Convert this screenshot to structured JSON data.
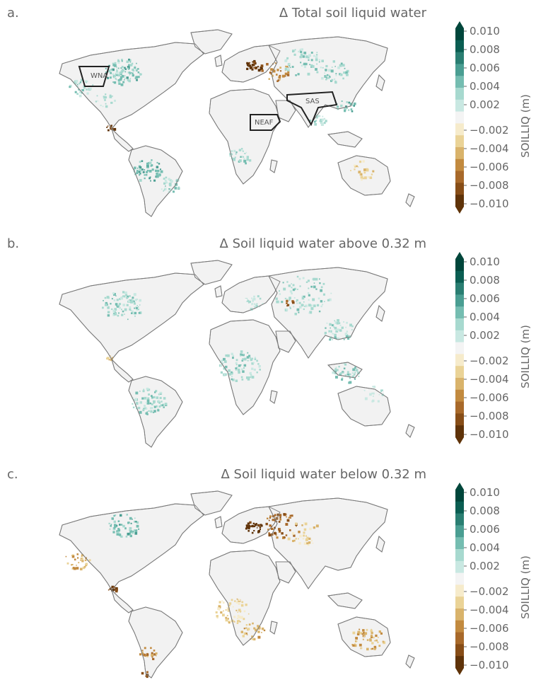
{
  "chart_data": [
    {
      "type": "heatmap",
      "panel": "a.",
      "title": "Δ Total soil liquid water",
      "colorbar": {
        "label": "SOILLIQ (m)",
        "ticks": [
          "0.010",
          "0.008",
          "0.006",
          "0.004",
          "0.002",
          "−0.002",
          "−0.004",
          "−0.006",
          "−0.008",
          "−0.010"
        ],
        "range": [
          -0.01,
          0.01
        ],
        "extend": "both"
      },
      "regions": [
        "WNA",
        "NEAF",
        "SAS"
      ],
      "pattern": "mixed"
    },
    {
      "type": "heatmap",
      "panel": "b.",
      "title": "Δ Soil liquid water above 0.32 m",
      "colorbar": {
        "label": "SOILLIQ (m)",
        "ticks": [
          "0.010",
          "0.008",
          "0.006",
          "0.004",
          "0.002",
          "−0.002",
          "−0.004",
          "−0.006",
          "−0.008",
          "−0.010"
        ],
        "range": [
          -0.01,
          0.01
        ],
        "extend": "both"
      },
      "regions": [],
      "pattern": "wet"
    },
    {
      "type": "heatmap",
      "panel": "c.",
      "title": "Δ Soil liquid water below 0.32 m",
      "colorbar": {
        "label": "SOILLIQ (m)",
        "ticks": [
          "0.010",
          "0.008",
          "0.006",
          "0.004",
          "0.002",
          "−0.002",
          "−0.004",
          "−0.006",
          "−0.008",
          "−0.010"
        ],
        "range": [
          -0.01,
          0.01
        ],
        "extend": "both"
      },
      "regions": [],
      "pattern": "dry"
    }
  ],
  "colors": {
    "bin_colors": [
      "#00463b",
      "#0b5e52",
      "#2a7e72",
      "#4a9e92",
      "#75bdb1",
      "#a7d9cf",
      "#c9e8e2",
      "#f4f4f4",
      "#f6ebcb",
      "#ead397",
      "#d9b36b",
      "#c28a3f",
      "#a8692a",
      "#874d17",
      "#5f3309"
    ],
    "land": "#f2f2f2",
    "coast": "#7a7a7a",
    "text": "#666666"
  }
}
